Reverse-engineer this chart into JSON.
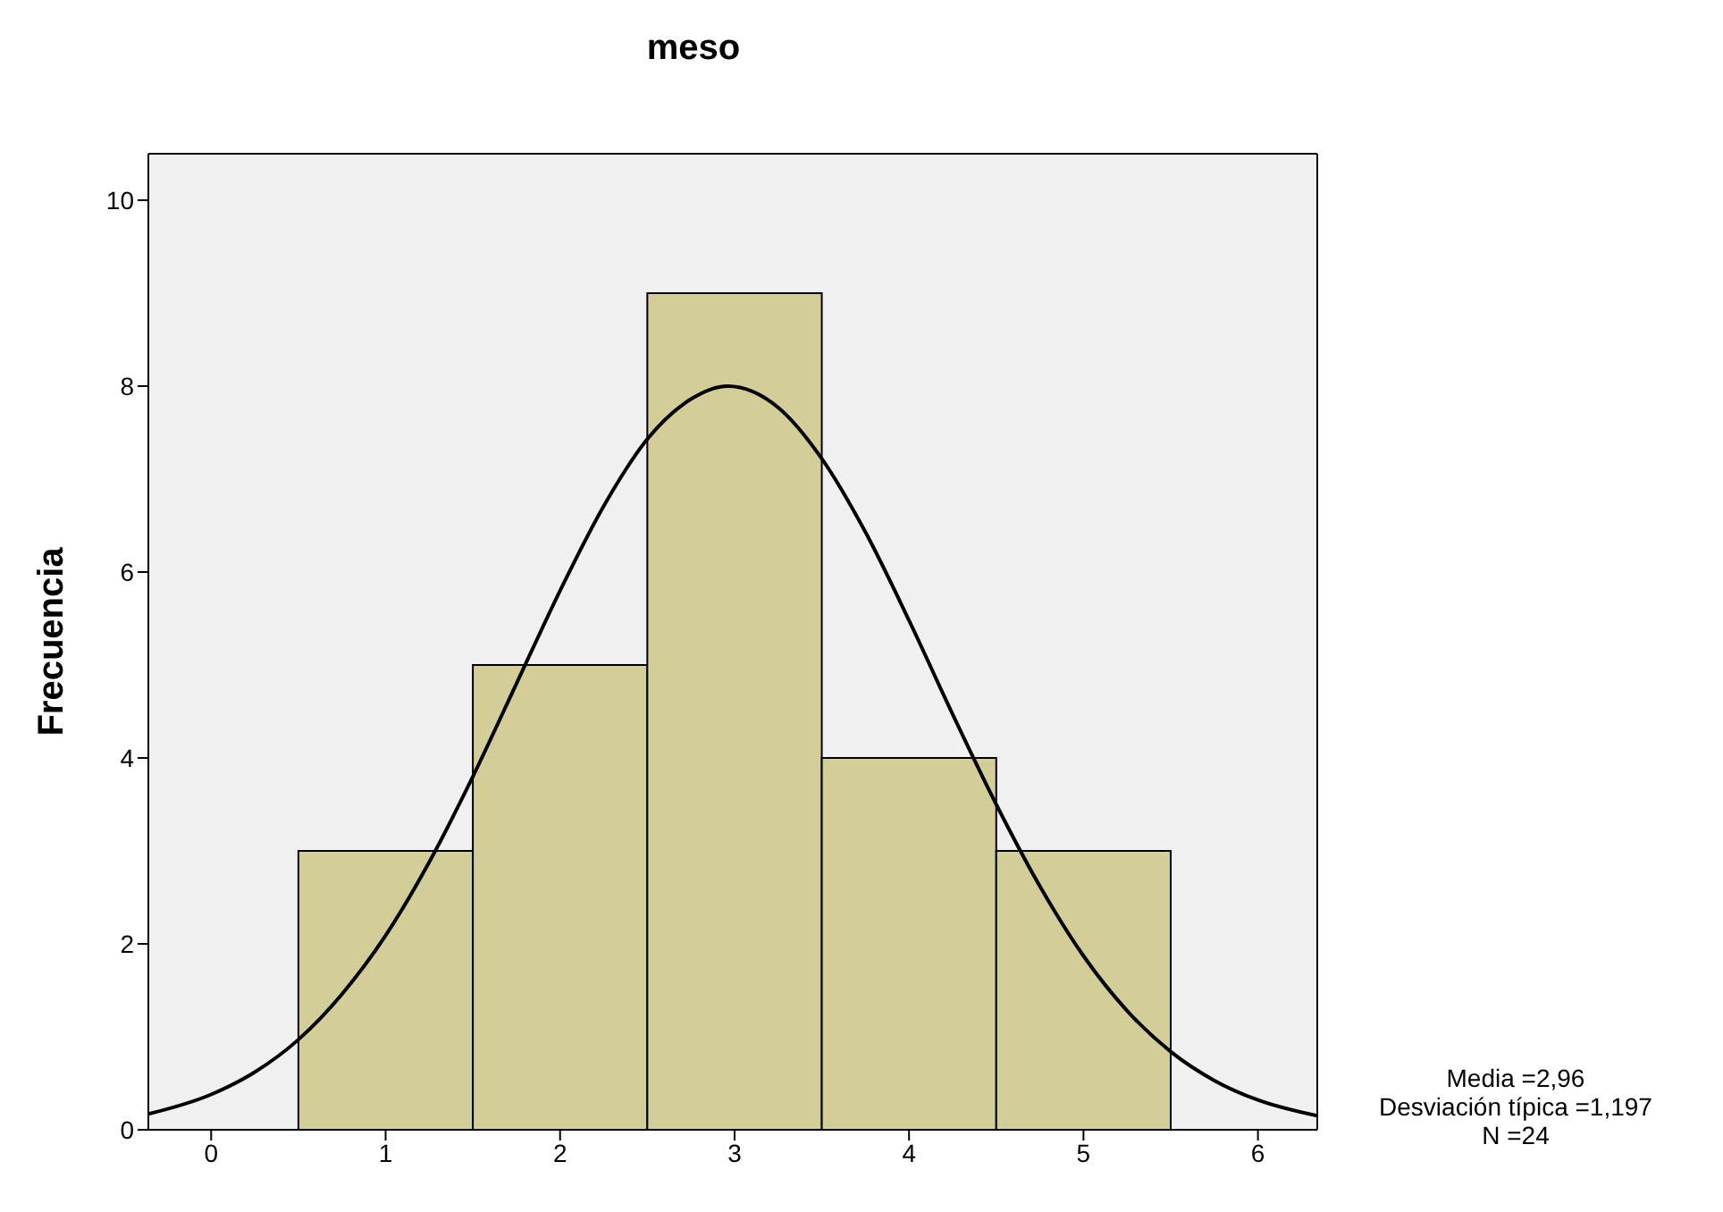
{
  "chart_data": {
    "type": "histogram",
    "title": "meso",
    "ylabel": "Frecuencia",
    "bins": [
      0.5,
      1.5,
      2.5,
      3.5,
      4.5,
      5.5
    ],
    "values": [
      3,
      5,
      9,
      4,
      3
    ],
    "color": "#d3ce98",
    "series": [
      {
        "type": "line",
        "color": "#000000",
        "x": [
          -0.36,
          0,
          0.25,
          0.5,
          0.75,
          1,
          1.25,
          1.5,
          1.75,
          2,
          2.25,
          2.5,
          2.75,
          2.96,
          3.25,
          3.5,
          3.75,
          4,
          4.25,
          4.5,
          4.75,
          5,
          5.25,
          5.5,
          5.75,
          6,
          6.34
        ],
        "values": [
          0.17,
          0.38,
          0.62,
          0.97,
          1.46,
          2.09,
          2.88,
          3.8,
          4.8,
          5.8,
          6.71,
          7.43,
          7.86,
          8.0,
          7.77,
          7.22,
          6.43,
          5.48,
          4.47,
          3.5,
          2.62,
          1.87,
          1.28,
          0.84,
          0.53,
          0.32,
          0.15
        ]
      }
    ],
    "xlim": [
      -0.36,
      6.34
    ],
    "xticks": [
      0,
      1,
      2,
      3,
      4,
      5,
      6
    ],
    "ylim": [
      0,
      10.5
    ],
    "yticks": [
      0,
      2,
      4,
      6,
      8,
      10
    ],
    "annotations": [
      "Media =2,96",
      "Desviación típica =1,197",
      "N =24"
    ]
  }
}
